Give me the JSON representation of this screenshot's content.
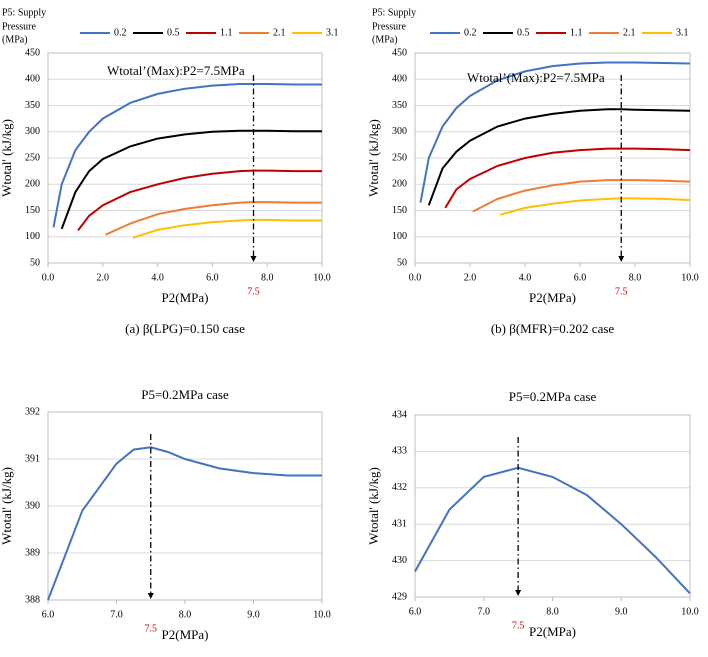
{
  "chart_data": [
    {
      "type": "line",
      "xlabel": "P2(MPa)",
      "ylabel": "Wtotal' (kJ/kg)",
      "caption": "(a) β(LPG)=0.150 case",
      "legend_title": [
        "P5: Supply",
        "Pressure",
        "(MPa)"
      ],
      "annotation": "Wtotal’(Max):P2=7.5MPa",
      "marker": {
        "value": 7.5,
        "label": "7.5"
      },
      "grid": true,
      "xlim": [
        0,
        10
      ],
      "xticks": [
        {
          "value": 0,
          "label": "0.0"
        },
        {
          "value": 2,
          "label": "2.0"
        },
        {
          "value": 4,
          "label": "4.0"
        },
        {
          "value": 6,
          "label": "6.0"
        },
        {
          "value": 8,
          "label": "8.0"
        },
        {
          "value": 10,
          "label": "10.0"
        }
      ],
      "ylim": [
        50,
        450
      ],
      "yticks": [
        50,
        100,
        150,
        200,
        250,
        300,
        350,
        400,
        450
      ],
      "series": [
        {
          "name": "0.2",
          "color": "#4472c4",
          "x": [
            0.2,
            0.5,
            1,
            1.5,
            2,
            3,
            4,
            5,
            6,
            7,
            7.5,
            8,
            9,
            10
          ],
          "values": [
            118,
            200,
            265,
            300,
            325,
            355,
            372,
            382,
            388,
            391,
            391,
            391,
            390,
            390
          ]
        },
        {
          "name": "0.5",
          "color": "#000000",
          "x": [
            0.5,
            1,
            1.5,
            2,
            3,
            4,
            5,
            6,
            7,
            7.5,
            8,
            9,
            10
          ],
          "values": [
            115,
            185,
            225,
            248,
            272,
            287,
            295,
            300,
            302,
            302,
            302,
            301,
            301
          ]
        },
        {
          "name": "1.1",
          "color": "#c00000",
          "x": [
            1.1,
            1.5,
            2,
            3,
            4,
            5,
            6,
            7,
            7.5,
            8,
            9,
            10
          ],
          "values": [
            112,
            140,
            160,
            185,
            200,
            212,
            220,
            225,
            226,
            226,
            225,
            225
          ]
        },
        {
          "name": "2.1",
          "color": "#ed7d31",
          "x": [
            2.1,
            3,
            4,
            5,
            6,
            7,
            7.5,
            8,
            9,
            10
          ],
          "values": [
            104,
            125,
            143,
            153,
            160,
            165,
            166,
            166,
            165,
            165
          ]
        },
        {
          "name": "3.1",
          "color": "#ffc000",
          "x": [
            3.1,
            4,
            5,
            6,
            7,
            7.5,
            8,
            9,
            10
          ],
          "values": [
            98,
            113,
            122,
            128,
            131,
            132,
            132,
            131,
            131
          ]
        }
      ]
    },
    {
      "type": "line",
      "xlabel": "P2(MPa)",
      "ylabel": "Wtotal' (kJ/kg)",
      "caption": "(b) β(MFR)=0.202 case",
      "legend_title": [
        "P5: Supply",
        "Pressure",
        "(MPa)"
      ],
      "annotation": "Wtotal’(Max):P2=7.5MPa",
      "marker": {
        "value": 7.5,
        "label": "7.5"
      },
      "grid": true,
      "xlim": [
        0,
        10
      ],
      "xticks": [
        {
          "value": 0,
          "label": "0.0"
        },
        {
          "value": 2,
          "label": "2.0"
        },
        {
          "value": 4,
          "label": "4.0"
        },
        {
          "value": 6,
          "label": "6.0"
        },
        {
          "value": 8,
          "label": "8.0"
        },
        {
          "value": 10,
          "label": "10.0"
        }
      ],
      "ylim": [
        50,
        450
      ],
      "yticks": [
        50,
        100,
        150,
        200,
        250,
        300,
        350,
        400,
        450
      ],
      "series": [
        {
          "name": "0.2",
          "color": "#4472c4",
          "x": [
            0.2,
            0.5,
            1,
            1.5,
            2,
            3,
            4,
            5,
            6,
            7,
            7.5,
            8,
            9,
            10
          ],
          "values": [
            165,
            250,
            310,
            345,
            368,
            398,
            415,
            425,
            430,
            432,
            432,
            432,
            431,
            430
          ]
        },
        {
          "name": "0.5",
          "color": "#000000",
          "x": [
            0.5,
            1,
            1.5,
            2,
            3,
            4,
            5,
            6,
            7,
            7.5,
            8,
            9,
            10
          ],
          "values": [
            160,
            230,
            262,
            283,
            310,
            325,
            334,
            340,
            343,
            343,
            342,
            341,
            340
          ]
        },
        {
          "name": "1.1",
          "color": "#c00000",
          "x": [
            1.1,
            1.5,
            2,
            3,
            4,
            5,
            6,
            7,
            7.5,
            8,
            9,
            10
          ],
          "values": [
            155,
            190,
            210,
            235,
            250,
            260,
            265,
            268,
            268,
            268,
            267,
            265
          ]
        },
        {
          "name": "2.1",
          "color": "#ed7d31",
          "x": [
            2.1,
            3,
            4,
            5,
            6,
            7,
            7.5,
            8,
            9,
            10
          ],
          "values": [
            148,
            172,
            188,
            198,
            205,
            208,
            208,
            208,
            207,
            205
          ]
        },
        {
          "name": "3.1",
          "color": "#ffc000",
          "x": [
            3.1,
            4,
            5,
            6,
            7,
            7.5,
            8,
            9,
            10
          ],
          "values": [
            142,
            155,
            163,
            169,
            172,
            173,
            173,
            172,
            170
          ]
        }
      ]
    },
    {
      "type": "line",
      "title": "P5=0.2MPa case",
      "xlabel": "P2(MPa)",
      "ylabel": "Wtotal' (kJ/kg)",
      "marker": {
        "value": 7.5,
        "label": "7.5"
      },
      "grid": true,
      "xlim": [
        6,
        10
      ],
      "xticks": [
        {
          "value": 6,
          "label": "6.0"
        },
        {
          "value": 7,
          "label": "7.0"
        },
        {
          "value": 8,
          "label": "8.0"
        },
        {
          "value": 9,
          "label": "9.0"
        },
        {
          "value": 10,
          "label": "10.0"
        }
      ],
      "ylim": [
        388,
        392
      ],
      "yticks": [
        388,
        389,
        390,
        391,
        392
      ],
      "series": [
        {
          "color": "#4472c4",
          "x": [
            6,
            6.5,
            7,
            7.25,
            7.5,
            7.75,
            8,
            8.5,
            9,
            9.5,
            10
          ],
          "values": [
            388,
            389.9,
            390.9,
            391.2,
            391.25,
            391.15,
            391.0,
            390.8,
            390.7,
            390.65,
            390.65
          ]
        }
      ]
    },
    {
      "type": "line",
      "title": "P5=0.2MPa case",
      "xlabel": "P2(MPa)",
      "ylabel": "Wtotal' (kJ/kg)",
      "marker": {
        "value": 7.5,
        "label": "7.5"
      },
      "grid": true,
      "xlim": [
        6,
        10
      ],
      "xticks": [
        {
          "value": 6,
          "label": "6.0"
        },
        {
          "value": 7,
          "label": "7.0"
        },
        {
          "value": 8,
          "label": "8.0"
        },
        {
          "value": 9,
          "label": "9.0"
        },
        {
          "value": 10,
          "label": "10.0"
        }
      ],
      "ylim": [
        429,
        434
      ],
      "yticks": [
        429,
        430,
        431,
        432,
        433,
        434
      ],
      "series": [
        {
          "color": "#4472c4",
          "x": [
            6,
            6.5,
            7,
            7.5,
            8,
            8.5,
            9,
            9.5,
            10
          ],
          "values": [
            429.7,
            431.4,
            432.3,
            432.55,
            432.3,
            431.8,
            431.0,
            430.1,
            429.1
          ]
        }
      ]
    }
  ]
}
